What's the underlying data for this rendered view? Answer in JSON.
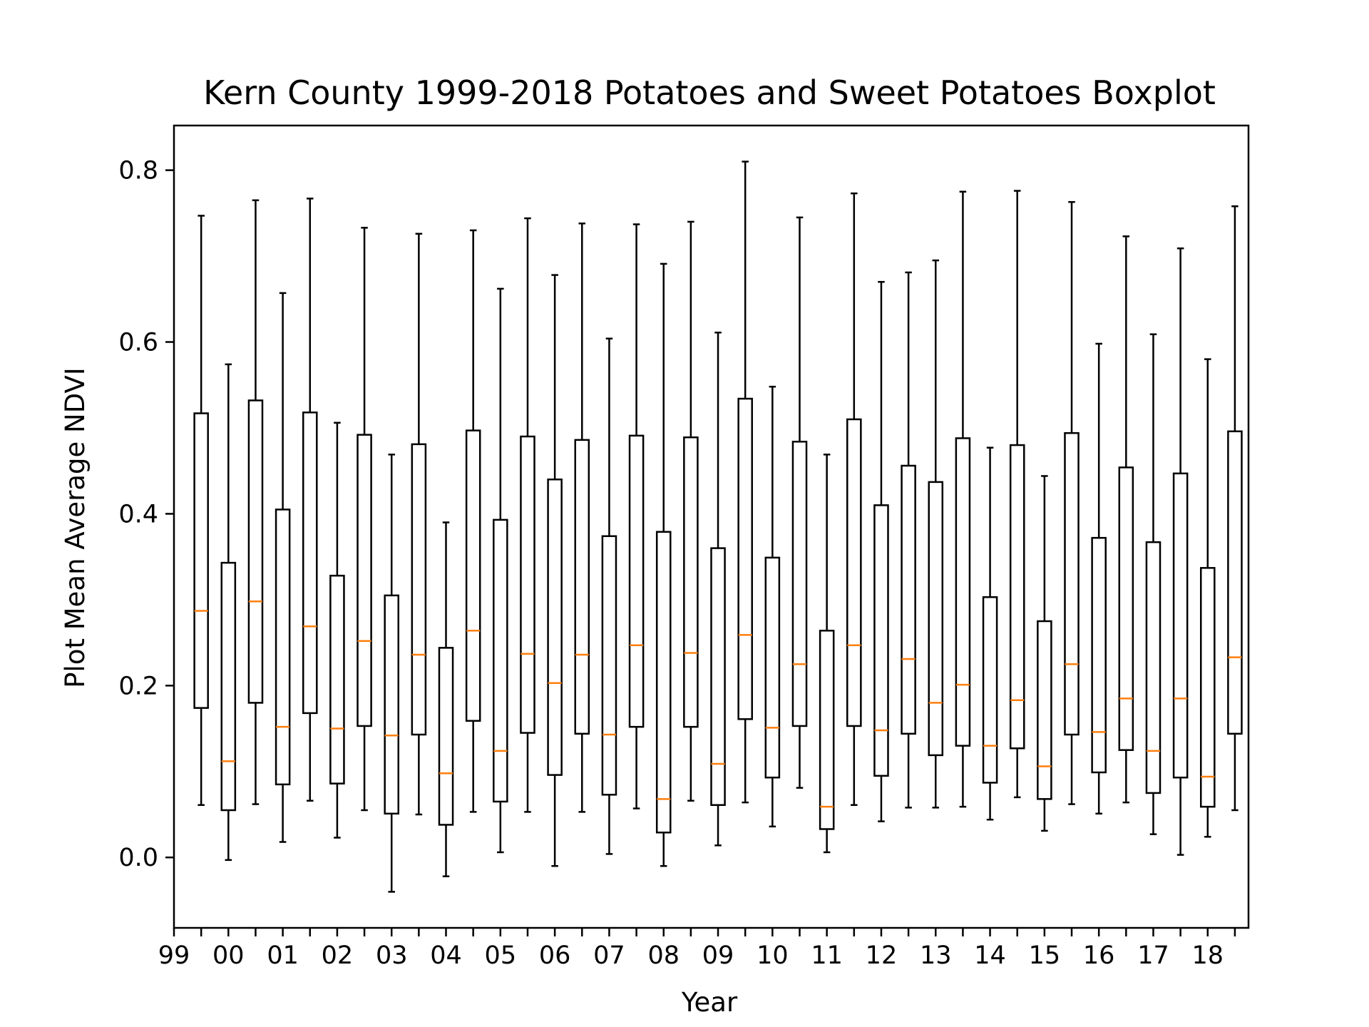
{
  "chart_data": {
    "type": "box",
    "title": "Kern County 1999-2018 Potatoes and Sweet Potatoes Boxplot",
    "xlabel": "Year",
    "ylabel": "Plot Mean Average NDVI",
    "ylim": [
      -0.082,
      0.852
    ],
    "yticks": [
      0.0,
      0.2,
      0.4,
      0.6,
      0.8
    ],
    "ytick_labels": [
      "0.0",
      "0.2",
      "0.4",
      "0.6",
      "0.8"
    ],
    "xtick_labels": [
      "99",
      "00",
      "01",
      "02",
      "03",
      "04",
      "05",
      "06",
      "07",
      "08",
      "09",
      "10",
      "11",
      "12",
      "13",
      "14",
      "15",
      "16",
      "17",
      "18"
    ],
    "grid": false,
    "colors": {
      "box": "#000000",
      "median": "#ff7f0e"
    },
    "boxes": [
      {
        "whisker_low": 0.061,
        "q1": 0.174,
        "median": 0.287,
        "q3": 0.517,
        "whisker_high": 0.747
      },
      {
        "whisker_low": -0.003,
        "q1": 0.055,
        "median": 0.112,
        "q3": 0.343,
        "whisker_high": 0.574
      },
      {
        "whisker_low": 0.062,
        "q1": 0.18,
        "median": 0.298,
        "q3": 0.532,
        "whisker_high": 0.765
      },
      {
        "whisker_low": 0.018,
        "q1": 0.085,
        "median": 0.152,
        "q3": 0.405,
        "whisker_high": 0.657
      },
      {
        "whisker_low": 0.066,
        "q1": 0.168,
        "median": 0.269,
        "q3": 0.518,
        "whisker_high": 0.767
      },
      {
        "whisker_low": 0.023,
        "q1": 0.086,
        "median": 0.15,
        "q3": 0.328,
        "whisker_high": 0.506
      },
      {
        "whisker_low": 0.055,
        "q1": 0.153,
        "median": 0.252,
        "q3": 0.492,
        "whisker_high": 0.733
      },
      {
        "whisker_low": -0.04,
        "q1": 0.051,
        "median": 0.142,
        "q3": 0.305,
        "whisker_high": 0.469
      },
      {
        "whisker_low": 0.05,
        "q1": 0.143,
        "median": 0.236,
        "q3": 0.481,
        "whisker_high": 0.726
      },
      {
        "whisker_low": -0.022,
        "q1": 0.038,
        "median": 0.098,
        "q3": 0.244,
        "whisker_high": 0.39
      },
      {
        "whisker_low": 0.053,
        "q1": 0.159,
        "median": 0.264,
        "q3": 0.497,
        "whisker_high": 0.73
      },
      {
        "whisker_low": 0.006,
        "q1": 0.065,
        "median": 0.124,
        "q3": 0.393,
        "whisker_high": 0.662
      },
      {
        "whisker_low": 0.053,
        "q1": 0.145,
        "median": 0.237,
        "q3": 0.49,
        "whisker_high": 0.744
      },
      {
        "whisker_low": -0.01,
        "q1": 0.096,
        "median": 0.203,
        "q3": 0.44,
        "whisker_high": 0.678
      },
      {
        "whisker_low": 0.053,
        "q1": 0.144,
        "median": 0.236,
        "q3": 0.486,
        "whisker_high": 0.738
      },
      {
        "whisker_low": 0.004,
        "q1": 0.073,
        "median": 0.143,
        "q3": 0.374,
        "whisker_high": 0.604
      },
      {
        "whisker_low": 0.057,
        "q1": 0.152,
        "median": 0.247,
        "q3": 0.491,
        "whisker_high": 0.737
      },
      {
        "whisker_low": -0.01,
        "q1": 0.029,
        "median": 0.068,
        "q3": 0.379,
        "whisker_high": 0.691
      },
      {
        "whisker_low": 0.066,
        "q1": 0.152,
        "median": 0.238,
        "q3": 0.489,
        "whisker_high": 0.74
      },
      {
        "whisker_low": 0.014,
        "q1": 0.061,
        "median": 0.109,
        "q3": 0.36,
        "whisker_high": 0.611
      },
      {
        "whisker_low": 0.064,
        "q1": 0.161,
        "median": 0.259,
        "q3": 0.534,
        "whisker_high": 0.81
      },
      {
        "whisker_low": 0.036,
        "q1": 0.093,
        "median": 0.151,
        "q3": 0.349,
        "whisker_high": 0.548
      },
      {
        "whisker_low": 0.081,
        "q1": 0.153,
        "median": 0.225,
        "q3": 0.484,
        "whisker_high": 0.745
      },
      {
        "whisker_low": 0.006,
        "q1": 0.033,
        "median": 0.059,
        "q3": 0.264,
        "whisker_high": 0.469
      },
      {
        "whisker_low": 0.061,
        "q1": 0.153,
        "median": 0.247,
        "q3": 0.51,
        "whisker_high": 0.773
      },
      {
        "whisker_low": 0.042,
        "q1": 0.095,
        "median": 0.148,
        "q3": 0.41,
        "whisker_high": 0.67
      },
      {
        "whisker_low": 0.058,
        "q1": 0.144,
        "median": 0.231,
        "q3": 0.456,
        "whisker_high": 0.681
      },
      {
        "whisker_low": 0.058,
        "q1": 0.119,
        "median": 0.18,
        "q3": 0.437,
        "whisker_high": 0.695
      },
      {
        "whisker_low": 0.059,
        "q1": 0.13,
        "median": 0.201,
        "q3": 0.488,
        "whisker_high": 0.775
      },
      {
        "whisker_low": 0.044,
        "q1": 0.087,
        "median": 0.13,
        "q3": 0.303,
        "whisker_high": 0.477
      },
      {
        "whisker_low": 0.07,
        "q1": 0.127,
        "median": 0.183,
        "q3": 0.48,
        "whisker_high": 0.776
      },
      {
        "whisker_low": 0.031,
        "q1": 0.068,
        "median": 0.106,
        "q3": 0.275,
        "whisker_high": 0.444
      },
      {
        "whisker_low": 0.062,
        "q1": 0.143,
        "median": 0.225,
        "q3": 0.494,
        "whisker_high": 0.763
      },
      {
        "whisker_low": 0.051,
        "q1": 0.099,
        "median": 0.146,
        "q3": 0.372,
        "whisker_high": 0.598
      },
      {
        "whisker_low": 0.064,
        "q1": 0.125,
        "median": 0.185,
        "q3": 0.454,
        "whisker_high": 0.723
      },
      {
        "whisker_low": 0.027,
        "q1": 0.075,
        "median": 0.124,
        "q3": 0.367,
        "whisker_high": 0.609
      },
      {
        "whisker_low": 0.003,
        "q1": 0.093,
        "median": 0.185,
        "q3": 0.447,
        "whisker_high": 0.709
      },
      {
        "whisker_low": 0.024,
        "q1": 0.059,
        "median": 0.094,
        "q3": 0.337,
        "whisker_high": 0.58
      },
      {
        "whisker_low": 0.055,
        "q1": 0.144,
        "median": 0.233,
        "q3": 0.496,
        "whisker_high": 0.758
      }
    ]
  }
}
